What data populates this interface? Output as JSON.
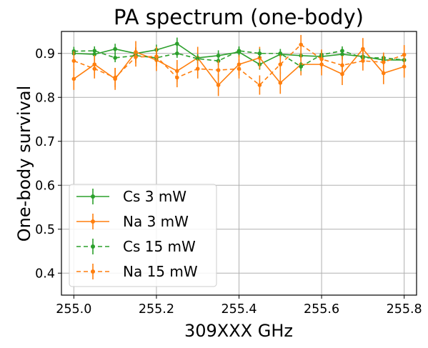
{
  "chart_data": {
    "type": "line",
    "title": "PA spectrum (one-body)",
    "xlabel": "309XXX GHz",
    "ylabel": "One-body survival",
    "xlim": [
      254.97,
      255.83
    ],
    "ylim": [
      0.35,
      0.95
    ],
    "xticks": [
      255.0,
      255.2,
      255.4,
      255.6,
      255.8
    ],
    "xtick_labels": [
      "255.0",
      "255.2",
      "255.4",
      "255.6",
      "255.8"
    ],
    "yticks": [
      0.4,
      0.5,
      0.6,
      0.7,
      0.8,
      0.9
    ],
    "ytick_labels": [
      "0.4",
      "0.5",
      "0.6",
      "0.7",
      "0.8",
      "0.9"
    ],
    "grid": true,
    "legend_position": "lower-left",
    "x": [
      255.0,
      255.05,
      255.1,
      255.15,
      255.2,
      255.25,
      255.3,
      255.35,
      255.4,
      255.45,
      255.5,
      255.55,
      255.6,
      255.65,
      255.7,
      255.75,
      255.8
    ],
    "series": [
      {
        "name": "Cs 3 mW",
        "color": "#2ca02c",
        "linestyle": "solid",
        "values": [
          0.9,
          0.898,
          0.91,
          0.9,
          0.908,
          0.922,
          0.89,
          0.895,
          0.903,
          0.875,
          0.898,
          0.895,
          0.893,
          0.898,
          0.893,
          0.885,
          0.885
        ],
        "errors": [
          0.012,
          0.012,
          0.012,
          0.012,
          0.012,
          0.014,
          0.012,
          0.012,
          0.012,
          0.012,
          0.012,
          0.012,
          0.012,
          0.012,
          0.012,
          0.01,
          0.01
        ]
      },
      {
        "name": "Na 3 mW",
        "color": "#ff7f0e",
        "linestyle": "solid",
        "values": [
          0.842,
          0.875,
          0.842,
          0.903,
          0.885,
          0.86,
          0.89,
          0.828,
          0.875,
          0.89,
          0.833,
          0.875,
          0.875,
          0.853,
          0.91,
          0.855,
          0.87
        ],
        "errors": [
          0.025,
          0.025,
          0.025,
          0.025,
          0.025,
          0.025,
          0.025,
          0.025,
          0.025,
          0.025,
          0.025,
          0.025,
          0.025,
          0.025,
          0.025,
          0.025,
          0.025
        ]
      },
      {
        "name": "Cs 15 mW",
        "color": "#2ca02c",
        "linestyle": "dashed",
        "values": [
          0.905,
          0.906,
          0.89,
          0.895,
          0.89,
          0.9,
          0.888,
          0.883,
          0.906,
          0.9,
          0.9,
          0.87,
          0.897,
          0.906,
          0.89,
          0.89,
          0.885
        ],
        "errors": [
          0.01,
          0.01,
          0.01,
          0.01,
          0.01,
          0.01,
          0.01,
          0.01,
          0.01,
          0.01,
          0.01,
          0.01,
          0.01,
          0.01,
          0.01,
          0.01,
          0.01
        ]
      },
      {
        "name": "Na 15 mW",
        "color": "#ff7f0e",
        "linestyle": "dashed",
        "values": [
          0.883,
          0.865,
          0.845,
          0.892,
          0.893,
          0.845,
          0.865,
          0.862,
          0.865,
          0.828,
          0.875,
          0.92,
          0.887,
          0.873,
          0.883,
          0.88,
          0.897
        ],
        "errors": [
          0.022,
          0.022,
          0.022,
          0.022,
          0.022,
          0.022,
          0.022,
          0.022,
          0.022,
          0.022,
          0.022,
          0.022,
          0.022,
          0.022,
          0.022,
          0.022,
          0.022
        ]
      }
    ]
  }
}
